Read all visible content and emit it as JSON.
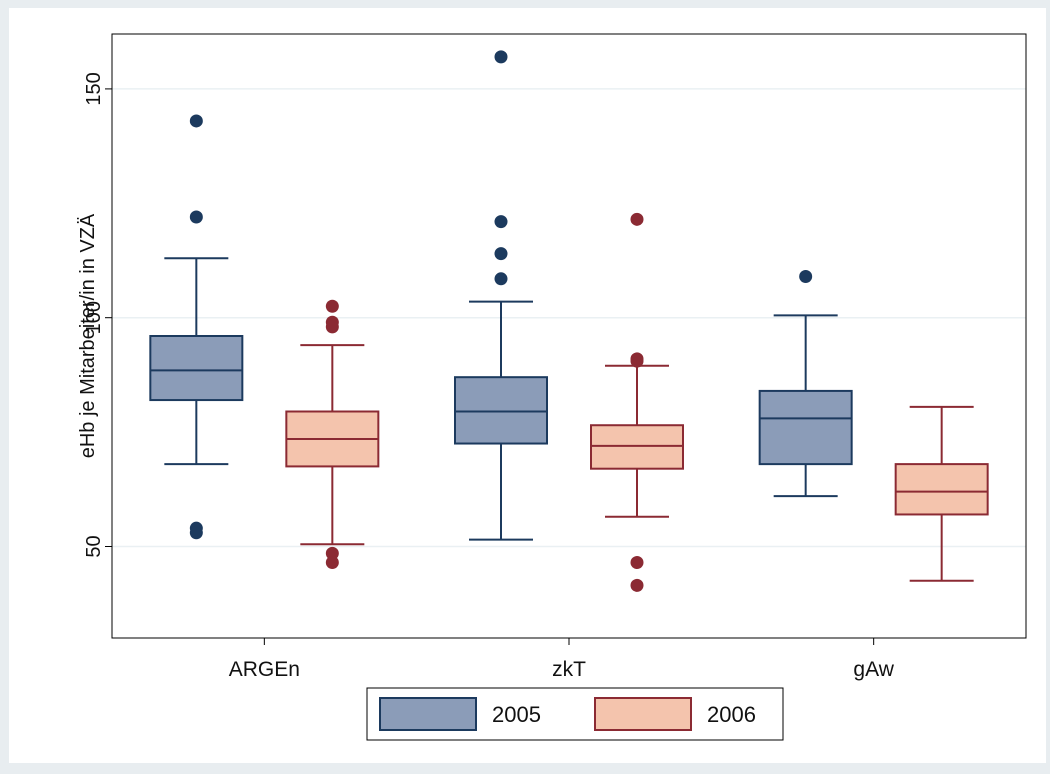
{
  "chart_data": {
    "type": "box",
    "ylabel": "eHb je Mitarbeiter/in in VZÄ",
    "xlabel": "",
    "ylim": [
      30,
      162
    ],
    "yticks": [
      50,
      100,
      150
    ],
    "categories": [
      "ARGEn",
      "zkT",
      "gAw"
    ],
    "grid": true,
    "legend_position": "bottom",
    "series": [
      {
        "name": "2005",
        "fill": "#8b9cb8",
        "stroke": "#1c3a5e",
        "boxes": [
          {
            "category": "ARGEn",
            "whisker_low": 68,
            "q1": 82,
            "median": 88.5,
            "q3": 96,
            "whisker_high": 113,
            "outliers": [
              143,
              122,
              54,
              53
            ]
          },
          {
            "category": "zkT",
            "whisker_low": 51.5,
            "q1": 72.5,
            "median": 79.5,
            "q3": 87,
            "whisker_high": 103.5,
            "outliers": [
              157,
              121,
              114,
              108.5
            ]
          },
          {
            "category": "gAw",
            "whisker_low": 61,
            "q1": 68,
            "median": 78,
            "q3": 84,
            "whisker_high": 100.5,
            "outliers": [
              109
            ]
          }
        ]
      },
      {
        "name": "2006",
        "fill": "#f4c4ad",
        "stroke": "#8b2a33",
        "boxes": [
          {
            "category": "ARGEn",
            "whisker_low": 50.5,
            "q1": 67.5,
            "median": 73.5,
            "q3": 79.5,
            "whisker_high": 94,
            "outliers": [
              102.5,
              99,
              98,
              48.5,
              46.5
            ]
          },
          {
            "category": "zkT",
            "whisker_low": 56.5,
            "q1": 67,
            "median": 72,
            "q3": 76.5,
            "whisker_high": 89.5,
            "outliers": [
              121.5,
              91,
              90.5,
              46.5,
              41.5
            ]
          },
          {
            "category": "gAw",
            "whisker_low": 42.5,
            "q1": 57,
            "median": 62,
            "q3": 68,
            "whisker_high": 80.5,
            "outliers": []
          }
        ]
      }
    ]
  }
}
